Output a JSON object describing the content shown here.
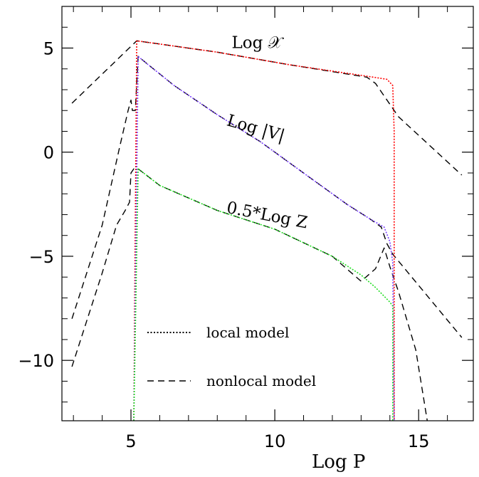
{
  "chart_data": {
    "type": "line",
    "xlabel": "Log P",
    "ylabel": "",
    "xlim": [
      2.6,
      16.9
    ],
    "ylim": [
      -12.9,
      7.0
    ],
    "x_ticks": [
      5,
      10,
      15
    ],
    "x_tick_labels": [
      "5",
      "10",
      "15"
    ],
    "y_ticks": [
      5,
      0,
      -5,
      -10
    ],
    "y_tick_labels": [
      "5",
      "0",
      "−5",
      "−10"
    ],
    "x_minor_step": 1,
    "y_minor_step": 1,
    "annotations": [
      {
        "text": "Log 𝒳",
        "x": 8.5,
        "y": 5.0,
        "angle": 0
      },
      {
        "text": "Log |V|",
        "x": 8.3,
        "y": 1.3,
        "angle": 16
      },
      {
        "text": "0.5*Log Z",
        "x": 8.3,
        "y": -2.9,
        "angle": 11
      }
    ],
    "legend": {
      "position": "bottom-center",
      "entries": [
        {
          "label": "local model",
          "style": "dotted"
        },
        {
          "label": "nonlocal model",
          "style": "dashed"
        }
      ]
    },
    "series": [
      {
        "model": "nonlocal",
        "curve": "X",
        "color": "#000000",
        "style": "dashed",
        "x": [
          2.95,
          5.2,
          8.0,
          10.5,
          13.2,
          13.5,
          14.3,
          16.5
        ],
        "y": [
          2.35,
          5.35,
          4.8,
          4.2,
          3.6,
          3.3,
          1.7,
          -1.1
        ]
      },
      {
        "model": "nonlocal",
        "curve": "V",
        "color": "#000000",
        "style": "dashed",
        "x": [
          2.95,
          4.0,
          4.6,
          4.9,
          5.0,
          5.05,
          5.15,
          5.25,
          5.6,
          6.5,
          8.0,
          9.5,
          11.0,
          12.5,
          13.3,
          13.7,
          13.9,
          14.1,
          16.5
        ],
        "y": [
          -8.0,
          -3.5,
          0.2,
          2.0,
          2.5,
          2.0,
          2.0,
          4.6,
          4.2,
          3.2,
          1.8,
          0.5,
          -1.0,
          -2.5,
          -3.2,
          -3.6,
          -4.4,
          -4.9,
          -8.9
        ]
      },
      {
        "model": "nonlocal",
        "curve": "Z",
        "color": "#000000",
        "style": "dashed",
        "x": [
          2.95,
          4.0,
          4.5,
          4.8,
          4.95,
          5.0,
          5.1,
          5.25,
          6.0,
          8.0,
          10.0,
          12.0,
          13.0,
          13.5,
          13.8,
          14.0,
          14.3,
          14.9,
          15.3
        ],
        "y": [
          -10.3,
          -5.8,
          -3.5,
          -2.8,
          -2.4,
          -1.0,
          -0.8,
          -0.8,
          -1.6,
          -2.8,
          -3.7,
          -5.0,
          -6.2,
          -5.6,
          -4.6,
          -5.5,
          -6.7,
          -9.5,
          -12.9
        ]
      },
      {
        "model": "local",
        "curve": "X",
        "color": "#ff0000",
        "style": "dotted",
        "x": [
          5.1,
          5.2,
          8.0,
          10.5,
          13.2,
          13.9,
          14.1,
          14.15,
          14.15
        ],
        "y": [
          -12.9,
          5.35,
          4.8,
          4.2,
          3.65,
          3.5,
          3.2,
          1.0,
          -12.9
        ]
      },
      {
        "model": "local",
        "curve": "V",
        "color": "#7a40ff",
        "style": "dotted",
        "x": [
          5.1,
          5.25,
          5.6,
          6.5,
          8.0,
          9.5,
          11.0,
          12.5,
          13.3,
          13.8,
          14.0,
          14.1,
          14.15
        ],
        "y": [
          -12.9,
          4.6,
          4.2,
          3.2,
          1.8,
          0.5,
          -1.0,
          -2.5,
          -3.2,
          -3.6,
          -4.3,
          -5.3,
          -12.9
        ]
      },
      {
        "model": "local",
        "curve": "Z",
        "color": "#22dd22",
        "style": "dotted",
        "x": [
          5.1,
          5.25,
          6.0,
          8.0,
          10.0,
          12.0,
          13.0,
          13.5,
          14.0,
          14.1,
          14.1
        ],
        "y": [
          -12.9,
          -0.8,
          -1.6,
          -2.8,
          -3.7,
          -5.0,
          -5.9,
          -6.5,
          -7.2,
          -7.4,
          -12.9
        ]
      }
    ]
  }
}
